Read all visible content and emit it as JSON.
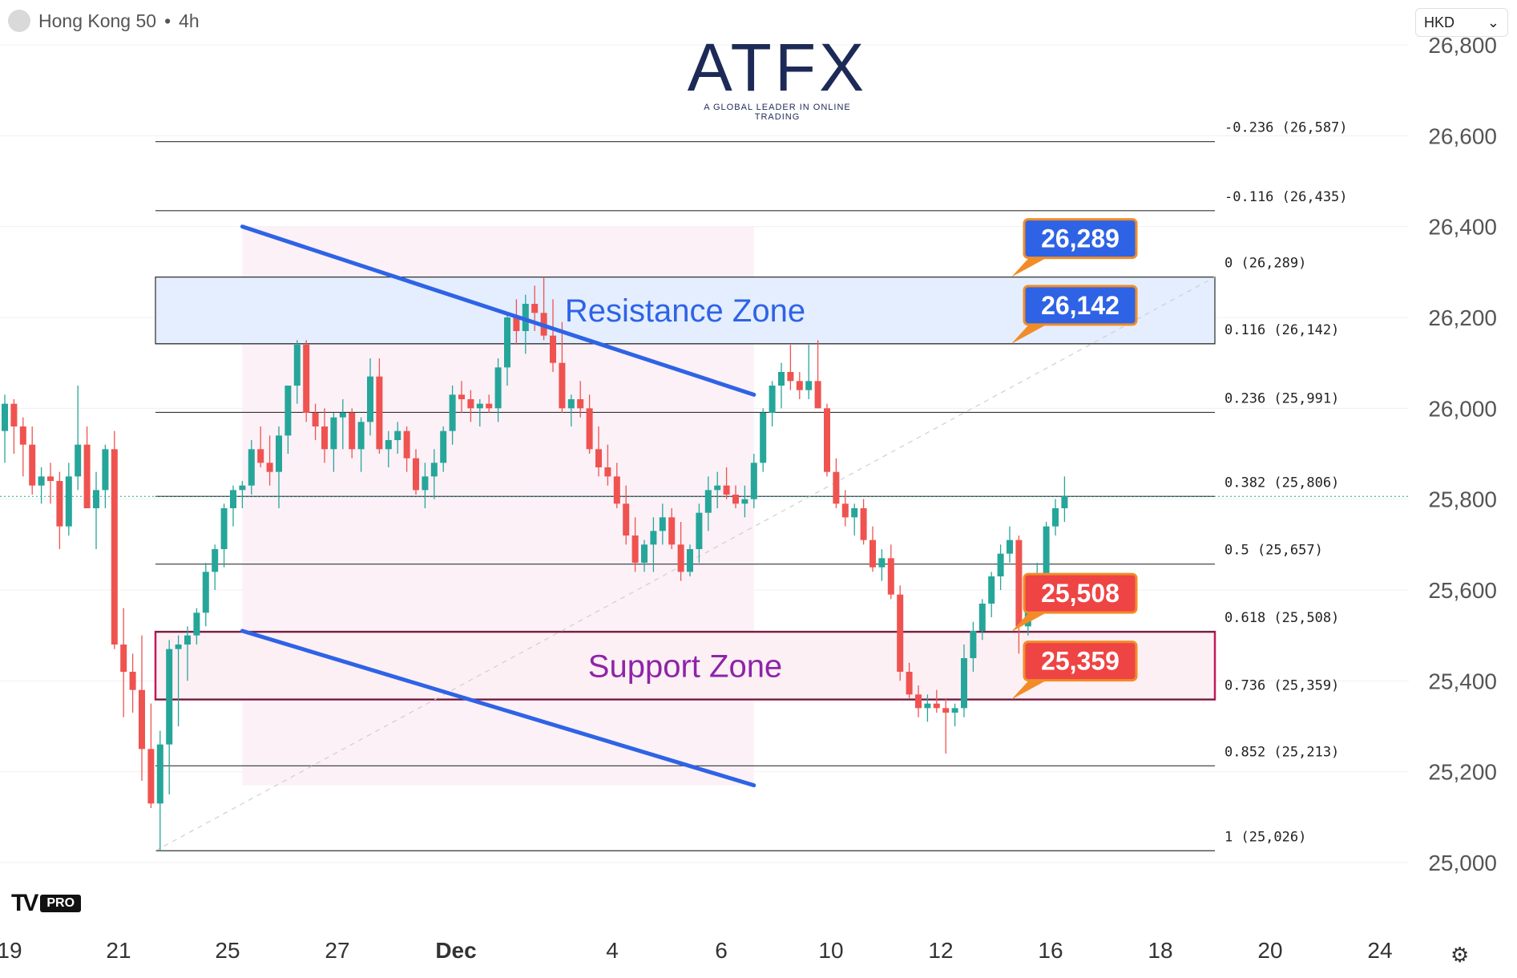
{
  "header": {
    "symbol": "Hong Kong 50",
    "timeframe": "4h",
    "separator": "•"
  },
  "currency": {
    "value": "HKD",
    "chevron": "chevron-down-icon"
  },
  "logo": {
    "text": "ATFX",
    "tagline": "A GLOBAL LEADER IN ONLINE TRADING"
  },
  "branding": {
    "mark": "TV",
    "badge": "PRO"
  },
  "settings_icon": "gear-icon",
  "colors": {
    "up": "#26a69a",
    "down": "#ef5350",
    "trend": "#2f63e6",
    "resistance": "#2f63e6",
    "support": "#8e24aa",
    "support_border": "#c2185b"
  },
  "chart_data": {
    "type": "candlestick",
    "title": "Hong Kong 50 • 4h",
    "y_axis": {
      "min": 25000,
      "max": 26800,
      "ticks": [
        25000,
        25200,
        25400,
        25600,
        25800,
        26000,
        26200,
        26400,
        26600,
        26800
      ]
    },
    "x_axis": {
      "tick_labels": [
        "19",
        "21",
        "25",
        "27",
        "Dec",
        "4",
        "6",
        "10",
        "12",
        "16",
        "18",
        "20",
        "24"
      ]
    },
    "current_price": 25806,
    "fib_levels": [
      {
        "ratio": "-0.236",
        "price": 26587,
        "label": "-0.236 (26,587)"
      },
      {
        "ratio": "-0.116",
        "price": 26435,
        "label": "-0.116 (26,435)"
      },
      {
        "ratio": "0",
        "price": 26289,
        "label": "0 (26,289)"
      },
      {
        "ratio": "0.116",
        "price": 26142,
        "label": "0.116 (26,142)"
      },
      {
        "ratio": "0.236",
        "price": 25991,
        "label": "0.236 (25,991)"
      },
      {
        "ratio": "0.382",
        "price": 25806,
        "label": "0.382 (25,806)"
      },
      {
        "ratio": "0.5",
        "price": 25657,
        "label": "0.5 (25,657)"
      },
      {
        "ratio": "0.618",
        "price": 25508,
        "label": "0.618 (25,508)"
      },
      {
        "ratio": "0.736",
        "price": 25359,
        "label": "0.736 (25,359)"
      },
      {
        "ratio": "0.852",
        "price": 25213,
        "label": "0.852 (25,213)"
      },
      {
        "ratio": "1",
        "price": 25026,
        "label": "1 (25,026)"
      }
    ],
    "zones": [
      {
        "name": "Resistance Zone",
        "from": 26142,
        "to": 26289
      },
      {
        "name": "Support Zone",
        "from": 25359,
        "to": 25508
      }
    ],
    "callouts": [
      {
        "text": "26,289",
        "price": 26289,
        "color": "#2f63e6"
      },
      {
        "text": "26,142",
        "price": 26142,
        "color": "#2f63e6"
      },
      {
        "text": "25,508",
        "price": 25508,
        "color": "#ef4444"
      },
      {
        "text": "25,359",
        "price": 25359,
        "color": "#ef4444"
      }
    ],
    "channel": {
      "upper": [
        {
          "bar": 26,
          "price": 26400
        },
        {
          "bar": 82,
          "price": 26030
        }
      ],
      "lower": [
        {
          "bar": 26,
          "price": 25510
        },
        {
          "bar": 82,
          "price": 25170
        }
      ]
    },
    "candles": [
      {
        "o": 25950,
        "h": 26030,
        "l": 25880,
        "c": 26010
      },
      {
        "o": 26010,
        "h": 26020,
        "l": 25900,
        "c": 25960
      },
      {
        "o": 25960,
        "h": 25980,
        "l": 25850,
        "c": 25920
      },
      {
        "o": 25920,
        "h": 25960,
        "l": 25810,
        "c": 25830
      },
      {
        "o": 25830,
        "h": 25870,
        "l": 25790,
        "c": 25850
      },
      {
        "o": 25850,
        "h": 25880,
        "l": 25790,
        "c": 25840
      },
      {
        "o": 25840,
        "h": 25860,
        "l": 25690,
        "c": 25740
      },
      {
        "o": 25740,
        "h": 25880,
        "l": 25720,
        "c": 25850
      },
      {
        "o": 25850,
        "h": 26050,
        "l": 25820,
        "c": 25920
      },
      {
        "o": 25920,
        "h": 25960,
        "l": 25780,
        "c": 25780
      },
      {
        "o": 25780,
        "h": 25860,
        "l": 25690,
        "c": 25820
      },
      {
        "o": 25820,
        "h": 25920,
        "l": 25780,
        "c": 25910
      },
      {
        "o": 25910,
        "h": 25950,
        "l": 25470,
        "c": 25480
      },
      {
        "o": 25480,
        "h": 25560,
        "l": 25320,
        "c": 25420
      },
      {
        "o": 25420,
        "h": 25460,
        "l": 25330,
        "c": 25380
      },
      {
        "o": 25380,
        "h": 25500,
        "l": 25180,
        "c": 25250
      },
      {
        "o": 25250,
        "h": 25350,
        "l": 25120,
        "c": 25130
      },
      {
        "o": 25130,
        "h": 25290,
        "l": 25026,
        "c": 25260
      },
      {
        "o": 25260,
        "h": 25490,
        "l": 25150,
        "c": 25470
      },
      {
        "o": 25470,
        "h": 25500,
        "l": 25300,
        "c": 25480
      },
      {
        "o": 25480,
        "h": 25520,
        "l": 25400,
        "c": 25500
      },
      {
        "o": 25500,
        "h": 25560,
        "l": 25480,
        "c": 25550
      },
      {
        "o": 25550,
        "h": 25660,
        "l": 25520,
        "c": 25640
      },
      {
        "o": 25640,
        "h": 25700,
        "l": 25600,
        "c": 25690
      },
      {
        "o": 25690,
        "h": 25790,
        "l": 25650,
        "c": 25780
      },
      {
        "o": 25780,
        "h": 25830,
        "l": 25740,
        "c": 25820
      },
      {
        "o": 25820,
        "h": 25840,
        "l": 25780,
        "c": 25830
      },
      {
        "o": 25830,
        "h": 25930,
        "l": 25810,
        "c": 25910
      },
      {
        "o": 25910,
        "h": 25960,
        "l": 25870,
        "c": 25880
      },
      {
        "o": 25880,
        "h": 25940,
        "l": 25830,
        "c": 25860
      },
      {
        "o": 25860,
        "h": 25960,
        "l": 25780,
        "c": 25940
      },
      {
        "o": 25940,
        "h": 26050,
        "l": 25900,
        "c": 26050
      },
      {
        "o": 26050,
        "h": 26150,
        "l": 26010,
        "c": 26140
      },
      {
        "o": 26140,
        "h": 26150,
        "l": 25970,
        "c": 25990
      },
      {
        "o": 25990,
        "h": 26010,
        "l": 25930,
        "c": 25960
      },
      {
        "o": 25960,
        "h": 26000,
        "l": 25880,
        "c": 25910
      },
      {
        "o": 25910,
        "h": 25990,
        "l": 25860,
        "c": 25980
      },
      {
        "o": 25980,
        "h": 26020,
        "l": 25910,
        "c": 25990
      },
      {
        "o": 25990,
        "h": 26000,
        "l": 25890,
        "c": 25910
      },
      {
        "o": 25910,
        "h": 25980,
        "l": 25860,
        "c": 25970
      },
      {
        "o": 25970,
        "h": 26110,
        "l": 25940,
        "c": 26070
      },
      {
        "o": 26070,
        "h": 26110,
        "l": 25900,
        "c": 25910
      },
      {
        "o": 25910,
        "h": 25950,
        "l": 25870,
        "c": 25930
      },
      {
        "o": 25930,
        "h": 25970,
        "l": 25900,
        "c": 25950
      },
      {
        "o": 25950,
        "h": 25960,
        "l": 25860,
        "c": 25890
      },
      {
        "o": 25890,
        "h": 25910,
        "l": 25810,
        "c": 25820
      },
      {
        "o": 25820,
        "h": 25880,
        "l": 25780,
        "c": 25850
      },
      {
        "o": 25850,
        "h": 25910,
        "l": 25800,
        "c": 25880
      },
      {
        "o": 25880,
        "h": 25960,
        "l": 25860,
        "c": 25950
      },
      {
        "o": 25950,
        "h": 26050,
        "l": 25920,
        "c": 26030
      },
      {
        "o": 26030,
        "h": 26060,
        "l": 25990,
        "c": 26020
      },
      {
        "o": 26020,
        "h": 26040,
        "l": 25970,
        "c": 26000
      },
      {
        "o": 26000,
        "h": 26020,
        "l": 25960,
        "c": 26010
      },
      {
        "o": 26010,
        "h": 26030,
        "l": 25990,
        "c": 26000
      },
      {
        "o": 26000,
        "h": 26110,
        "l": 25970,
        "c": 26090
      },
      {
        "o": 26090,
        "h": 26210,
        "l": 26050,
        "c": 26200
      },
      {
        "o": 26200,
        "h": 26240,
        "l": 26140,
        "c": 26170
      },
      {
        "o": 26170,
        "h": 26250,
        "l": 26120,
        "c": 26230
      },
      {
        "o": 26230,
        "h": 26270,
        "l": 26170,
        "c": 26210
      },
      {
        "o": 26210,
        "h": 26289,
        "l": 26150,
        "c": 26160
      },
      {
        "o": 26160,
        "h": 26240,
        "l": 26080,
        "c": 26100
      },
      {
        "o": 26100,
        "h": 26190,
        "l": 25990,
        "c": 26000
      },
      {
        "o": 26000,
        "h": 26030,
        "l": 25960,
        "c": 26020
      },
      {
        "o": 26020,
        "h": 26060,
        "l": 25980,
        "c": 26000
      },
      {
        "o": 26000,
        "h": 26030,
        "l": 25900,
        "c": 25910
      },
      {
        "o": 25910,
        "h": 25960,
        "l": 25850,
        "c": 25870
      },
      {
        "o": 25870,
        "h": 25920,
        "l": 25830,
        "c": 25850
      },
      {
        "o": 25850,
        "h": 25880,
        "l": 25780,
        "c": 25790
      },
      {
        "o": 25790,
        "h": 25830,
        "l": 25700,
        "c": 25720
      },
      {
        "o": 25720,
        "h": 25760,
        "l": 25640,
        "c": 25660
      },
      {
        "o": 25660,
        "h": 25710,
        "l": 25640,
        "c": 25700
      },
      {
        "o": 25700,
        "h": 25760,
        "l": 25640,
        "c": 25730
      },
      {
        "o": 25730,
        "h": 25790,
        "l": 25700,
        "c": 25760
      },
      {
        "o": 25760,
        "h": 25780,
        "l": 25690,
        "c": 25700
      },
      {
        "o": 25700,
        "h": 25750,
        "l": 25620,
        "c": 25640
      },
      {
        "o": 25640,
        "h": 25700,
        "l": 25630,
        "c": 25690
      },
      {
        "o": 25690,
        "h": 25790,
        "l": 25660,
        "c": 25770
      },
      {
        "o": 25770,
        "h": 25850,
        "l": 25730,
        "c": 25820
      },
      {
        "o": 25820,
        "h": 25860,
        "l": 25780,
        "c": 25830
      },
      {
        "o": 25830,
        "h": 25870,
        "l": 25800,
        "c": 25810
      },
      {
        "o": 25810,
        "h": 25830,
        "l": 25780,
        "c": 25790
      },
      {
        "o": 25790,
        "h": 25830,
        "l": 25760,
        "c": 25800
      },
      {
        "o": 25800,
        "h": 25900,
        "l": 25780,
        "c": 25880
      },
      {
        "o": 25880,
        "h": 26000,
        "l": 25860,
        "c": 25990
      },
      {
        "o": 25990,
        "h": 26060,
        "l": 25960,
        "c": 26050
      },
      {
        "o": 26050,
        "h": 26100,
        "l": 26000,
        "c": 26080
      },
      {
        "o": 26080,
        "h": 26140,
        "l": 26040,
        "c": 26060
      },
      {
        "o": 26060,
        "h": 26080,
        "l": 26020,
        "c": 26040
      },
      {
        "o": 26040,
        "h": 26140,
        "l": 26020,
        "c": 26060
      },
      {
        "o": 26060,
        "h": 26150,
        "l": 26000,
        "c": 26000
      },
      {
        "o": 26000,
        "h": 26010,
        "l": 25850,
        "c": 25860
      },
      {
        "o": 25860,
        "h": 25890,
        "l": 25780,
        "c": 25790
      },
      {
        "o": 25790,
        "h": 25820,
        "l": 25740,
        "c": 25760
      },
      {
        "o": 25760,
        "h": 25790,
        "l": 25720,
        "c": 25780
      },
      {
        "o": 25780,
        "h": 25800,
        "l": 25700,
        "c": 25710
      },
      {
        "o": 25710,
        "h": 25740,
        "l": 25640,
        "c": 25650
      },
      {
        "o": 25650,
        "h": 25690,
        "l": 25620,
        "c": 25670
      },
      {
        "o": 25670,
        "h": 25700,
        "l": 25580,
        "c": 25590
      },
      {
        "o": 25590,
        "h": 25610,
        "l": 25400,
        "c": 25420
      },
      {
        "o": 25420,
        "h": 25440,
        "l": 25360,
        "c": 25370
      },
      {
        "o": 25370,
        "h": 25390,
        "l": 25320,
        "c": 25340
      },
      {
        "o": 25340,
        "h": 25370,
        "l": 25310,
        "c": 25350
      },
      {
        "o": 25350,
        "h": 25380,
        "l": 25330,
        "c": 25340
      },
      {
        "o": 25340,
        "h": 25360,
        "l": 25240,
        "c": 25330
      },
      {
        "o": 25330,
        "h": 25350,
        "l": 25300,
        "c": 25340
      },
      {
        "o": 25340,
        "h": 25480,
        "l": 25320,
        "c": 25450
      },
      {
        "o": 25450,
        "h": 25530,
        "l": 25420,
        "c": 25510
      },
      {
        "o": 25510,
        "h": 25580,
        "l": 25490,
        "c": 25570
      },
      {
        "o": 25570,
        "h": 25640,
        "l": 25540,
        "c": 25630
      },
      {
        "o": 25630,
        "h": 25700,
        "l": 25600,
        "c": 25680
      },
      {
        "o": 25680,
        "h": 25740,
        "l": 25660,
        "c": 25710
      },
      {
        "o": 25710,
        "h": 25720,
        "l": 25460,
        "c": 25520
      },
      {
        "o": 25520,
        "h": 25610,
        "l": 25500,
        "c": 25590
      },
      {
        "o": 25590,
        "h": 25660,
        "l": 25550,
        "c": 25600
      },
      {
        "o": 25600,
        "h": 25750,
        "l": 25580,
        "c": 25740
      },
      {
        "o": 25740,
        "h": 25800,
        "l": 25720,
        "c": 25780
      },
      {
        "o": 25780,
        "h": 25850,
        "l": 25750,
        "c": 25806
      }
    ]
  }
}
